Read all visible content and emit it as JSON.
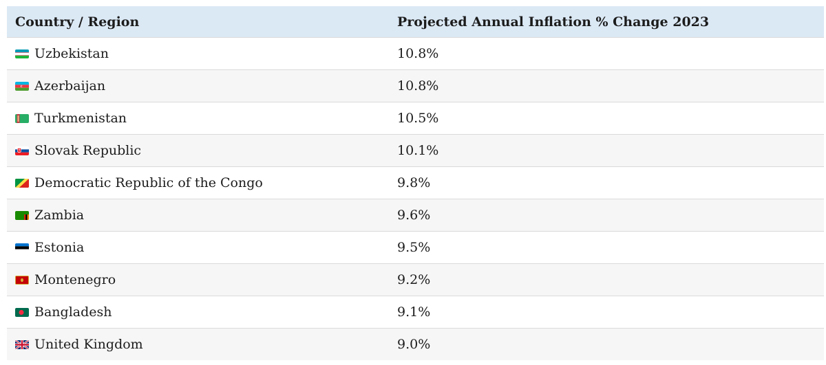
{
  "table": {
    "headers": {
      "country": "Country / Region",
      "value": "Projected Annual Inflation % Change 2023"
    },
    "rows": [
      {
        "flag_icon": "uzbekistan-flag-icon",
        "country": "Uzbekistan",
        "value": "10.8%"
      },
      {
        "flag_icon": "azerbaijan-flag-icon",
        "country": "Azerbaijan",
        "value": "10.8%"
      },
      {
        "flag_icon": "turkmenistan-flag-icon",
        "country": "Turkmenistan",
        "value": "10.5%"
      },
      {
        "flag_icon": "slovakia-flag-icon",
        "country": "Slovak Republic",
        "value": "10.1%"
      },
      {
        "flag_icon": "congo-flag-icon",
        "country": "Democratic Republic of the Congo",
        "value": "9.8%"
      },
      {
        "flag_icon": "zambia-flag-icon",
        "country": "Zambia",
        "value": "9.6%"
      },
      {
        "flag_icon": "estonia-flag-icon",
        "country": "Estonia",
        "value": "9.5%"
      },
      {
        "flag_icon": "montenegro-flag-icon",
        "country": "Montenegro",
        "value": "9.2%"
      },
      {
        "flag_icon": "bangladesh-flag-icon",
        "country": "Bangladesh",
        "value": "9.1%"
      },
      {
        "flag_icon": "united-kingdom-flag-icon",
        "country": "United Kingdom",
        "value": "9.0%"
      }
    ]
  },
  "colors": {
    "header_background": "#dbe9f5",
    "row_alt_background": "#f6f6f6",
    "row_border": "#dadada",
    "text": "#1c1c1c"
  }
}
